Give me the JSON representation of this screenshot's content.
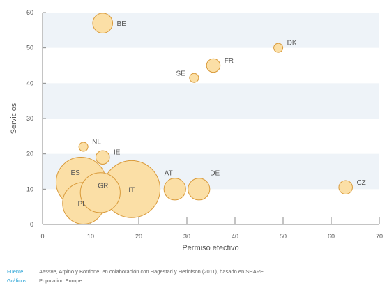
{
  "chart_data": {
    "type": "scatter",
    "subtype": "bubble",
    "xlabel": "Permiso efectivo",
    "ylabel": "Servicios",
    "xlim": [
      0,
      70
    ],
    "ylim": [
      0,
      60
    ],
    "xticks": [
      "0",
      "10",
      "20",
      "30",
      "40",
      "50",
      "60",
      "70"
    ],
    "yticks": [
      "0",
      "10",
      "20",
      "30",
      "40",
      "50",
      "60"
    ],
    "grid": "alternating horizontal bands",
    "colors": {
      "bubble_fill": "#fbdfa6",
      "bubble_stroke": "#d99a3a",
      "band": "#eef3f8",
      "axis": "#888888",
      "text": "#555555"
    },
    "points": [
      {
        "label": "BE",
        "x": 12.5,
        "y": 57,
        "size": 2.2
      },
      {
        "label": "DK",
        "x": 49,
        "y": 50,
        "size": 1
      },
      {
        "label": "FR",
        "x": 35.5,
        "y": 45,
        "size": 1.5
      },
      {
        "label": "SE",
        "x": 31.5,
        "y": 41.5,
        "size": 1
      },
      {
        "label": "NL",
        "x": 8.5,
        "y": 22,
        "size": 1
      },
      {
        "label": "IE",
        "x": 12.5,
        "y": 19,
        "size": 1.5
      },
      {
        "label": "ES",
        "x": 8,
        "y": 12,
        "size": 5.5
      },
      {
        "label": "GR",
        "x": 12,
        "y": 9,
        "size": 4.4
      },
      {
        "label": "IT",
        "x": 18.5,
        "y": 10,
        "size": 6.3
      },
      {
        "label": "PL",
        "x": 8.5,
        "y": 6,
        "size": 4.6
      },
      {
        "label": "AT",
        "x": 27.5,
        "y": 10,
        "size": 2.4
      },
      {
        "label": "DE",
        "x": 32.5,
        "y": 10,
        "size": 2.4
      },
      {
        "label": "CZ",
        "x": 63,
        "y": 10.5,
        "size": 1.5
      }
    ]
  },
  "footer": {
    "source_label": "Fuente",
    "source_text": "Aassve, Arpino y Bordone, en colaboración con Hagestad y Herlofson (2011), basado en SHARE",
    "graphics_label": "Gráficos",
    "graphics_text": "Population Europe"
  }
}
